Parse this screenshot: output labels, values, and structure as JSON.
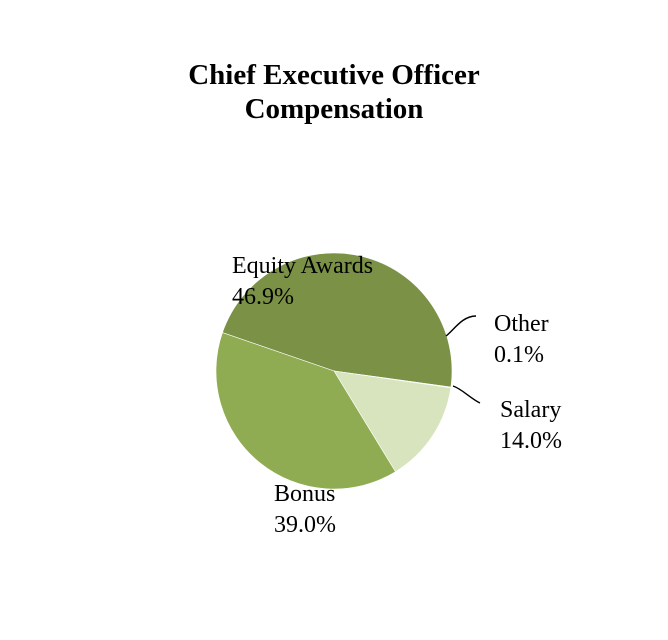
{
  "chart_data": {
    "type": "pie",
    "title_lines": [
      "Chief Executive Officer",
      "Compensation"
    ],
    "slices": [
      {
        "label": "Equity Awards",
        "value": 46.9,
        "value_label": "46.9%",
        "color": "#7a9146"
      },
      {
        "label": "Other",
        "value": 0.1,
        "value_label": "0.1%",
        "color": "#dde8c4"
      },
      {
        "label": "Salary",
        "value": 14.0,
        "value_label": "14.0%",
        "color": "#d7e4bd"
      },
      {
        "label": "Bonus",
        "value": 39.0,
        "value_label": "39.0%",
        "color": "#8fac52"
      }
    ]
  }
}
